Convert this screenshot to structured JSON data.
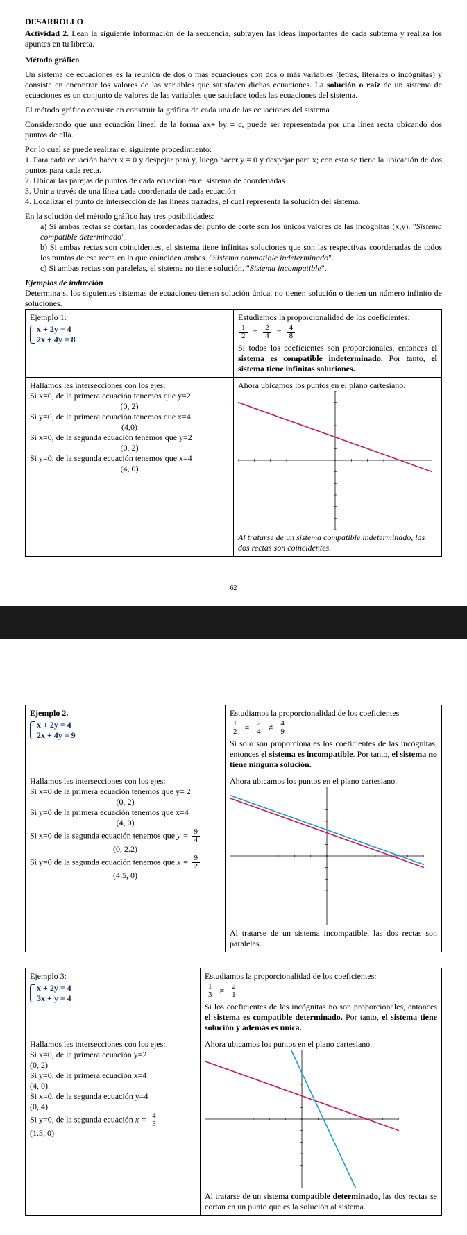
{
  "header": {
    "title": "DESARROLLO",
    "activity_label": "Actividad 2.",
    "activity_text": "Lean la siguiente información de la secuencia, subrayen las ideas importantes de cada subtema y realiza los apuntes en tu libreta.",
    "section": "Método gráfico"
  },
  "intro": {
    "p1a": "Un sistema de ecuaciones es la reunión de dos o más ecuaciones con dos o más variables (letras, literales o incógnitas) y consiste en encontrar los valores de las variables que satisfacen dichas ecuaciones. La ",
    "p1b": "solución o raíz",
    "p1c": " de un sistema de ecuaciones es un conjunto de valores de las variables que satisface todas las ecuaciones del sistema.",
    "p2": "El método gráfico consiste en construir la gráfica de cada una de las ecuaciones del sistema",
    "p3": "Considerando que una ecuación lineal de la forma ax+ by = c, puede ser representada por una línea recta ubicando dos puntos de ella.",
    "p4": "Por lo cual se puede realizar el siguiente procedimiento:",
    "step1": "1. Para cada ecuación hacer x = 0 y despejar para y, luego hacer y = 0 y despejar para x; con esto se tiene la ubicación de dos puntos para cada recta.",
    "step2": "2. Ubicar las parejas de puntos de cada ecuación en el sistema de coordenadas",
    "step3": "3. Unir a través de una línea cada coordenada de cada ecuación",
    "step4": "4. Localizar el punto de intersección de las líneas trazadas, el cual representa la solución del sistema.",
    "pos_intro": "En la solución del método gráfico hay tres posibilidades:",
    "pos_a_1": "a) Si ambas rectas se cortan, las coordenadas del punto de corte son los únicos valores de las incógnitas (x,y). \"",
    "pos_a_2": "Sistema compatible determinado",
    "pos_a_3": "\".",
    "pos_b_1": "b) Si ambas rectas son coincidentes, el sistema tiene infinitas soluciones que son las respectivas coordenadas de todos los puntos de esa recta en la que coinciden ambas. \"",
    "pos_b_2": "Sistema compatible indeterminado",
    "pos_b_3": "\".",
    "pos_c_1": "c) Si ambas rectas son paralelas, el sistema no tiene solución. \"",
    "pos_c_2": "Sistema incompatible",
    "pos_c_3": "\"."
  },
  "induction": {
    "title": "Ejemplos de inducción",
    "text": "Determina si los siguientes sistemas de ecuaciones tienen solución única, no tienen solución o tienen un número infinito de soluciones."
  },
  "ex1": {
    "title": "Ejemplo 1:",
    "eq1": "x + 2y = 4",
    "eq2": "2x + 4y = 8",
    "study": "Estudiamos la proporcionalidad de los coeficientes:",
    "frac": {
      "a": [
        "1",
        "2"
      ],
      "b": [
        "2",
        "4"
      ],
      "c": [
        "4",
        "8"
      ],
      "op1": "=",
      "op2": "="
    },
    "concl_a": "Si todos los coeficientes son proporcionales, entonces ",
    "concl_b": "el sistema es compatible indeterminado.",
    "concl_c": " Por tanto, ",
    "concl_d": "el sistema tiene infinitas soluciones.",
    "inter_title": "Hallamos las intersecciones con los ejes:",
    "i1": "Si x=0, de la primera ecuación tenemos que y=2",
    "i1p": "(0, 2)",
    "i2": "Si y=0, de la primera ecuación tenemos que x=4",
    "i2p": "(4,0)",
    "i3": "Si x=0, de la segunda ecuación tenemos que y=2",
    "i3p": "(0, 2)",
    "i4": "Si y=0, de la segunda ecuación tenemos que x=4",
    "i4p": "(4, 0)",
    "plot_title": "Ahora ubicamos los puntos en el plano cartesiano.",
    "caption": "Al tratarse de un sistema compatible indeterminado, las dos rectas son coincidentes.",
    "chart": {
      "type": "line",
      "xlim": [
        -6,
        6
      ],
      "ylim": [
        -6,
        6
      ],
      "axis_color": "#000000",
      "bg": "#ffffff",
      "lines": [
        {
          "color": "#d4145a",
          "width": 1.6,
          "pts": [
            [
              -6,
              5
            ],
            [
              6,
              -1
            ]
          ]
        }
      ]
    }
  },
  "ex2": {
    "title": "Ejemplo 2.",
    "eq1": "x + 2y = 4",
    "eq2": "2x + 4y = 9",
    "study": "Estudiamos la proporcionalidad de los coeficientes",
    "frac": {
      "a": [
        "1",
        "2"
      ],
      "b": [
        "2",
        "4"
      ],
      "c": [
        "4",
        "9"
      ],
      "op1": "=",
      "op2": "≠"
    },
    "concl_a": "Si solo son proporcionales los coeficientes de las incógnitas, entonces ",
    "concl_b": "el sistema es incompatible",
    "concl_c": ". Por tanto, ",
    "concl_d": "el sistema no tiene ninguna solución.",
    "inter_title": "Hallamos las intersecciones con los ejes:",
    "i1": "Si x=0 de la primera ecuación tenemos que y= 2",
    "i1p": "(0, 2)",
    "i2": "Si y=0 de la primera ecuación tenemos que x=4",
    "i2p": "(4, 0)",
    "i3a": "Si x=0 de la segunda ecuación tenemos que ",
    "i3b": "y = ",
    "i3f": [
      "9",
      "4"
    ],
    "i3p": "(0, 2.2)",
    "i4a": "Si y=0 de la segunda ecuación tenemos que ",
    "i4b": "x = ",
    "i4f": [
      "9",
      "2"
    ],
    "i4p": "(4.5, 0)",
    "plot_title": "Ahora ubicamos los puntos en el plano cartesiano.",
    "caption": "Al tratarse de un sistema incompatible, las dos rectas son paralelas.",
    "chart": {
      "type": "line",
      "xlim": [
        -6,
        6
      ],
      "ylim": [
        -6,
        6
      ],
      "axis_color": "#000000",
      "bg": "#ffffff",
      "lines": [
        {
          "color": "#1e9bd6",
          "width": 1.6,
          "pts": [
            [
              -6,
              5.25
            ],
            [
              6,
              -0.75
            ]
          ]
        },
        {
          "color": "#d4145a",
          "width": 1.6,
          "pts": [
            [
              -6,
              5
            ],
            [
              6,
              -1
            ]
          ]
        }
      ]
    }
  },
  "ex3": {
    "title": "Ejemplo 3:",
    "eq1": "x  +  2y  =  4",
    "eq2": "3x  +  y  =  4",
    "study": "Estudiamos la proporcionalidad de los coeficientes:",
    "frac": {
      "a": [
        "1",
        "3"
      ],
      "b": [
        "2",
        "1"
      ],
      "op1": "≠"
    },
    "concl_a": "Si los coeficientes de las incógnitas no son proporcionales, entonces ",
    "concl_b": "el sistema es compatible determinado.",
    "concl_c": " Por tanto, ",
    "concl_d": "el sistema tiene solución y además es única.",
    "inter_title": "Hallamos las intersecciones con los ejes:",
    "i1": "Si x=0, de la primera ecuación y=2",
    "i1p": "(0, 2)",
    "i2": "Si y=0, de la primera ecuación x=4",
    "i2p": "(4, 0)",
    "i3": "Si x=0, de la segunda ecuación y=4",
    "i3p": "(0, 4)",
    "i4a": "Si y=0, de la segunda ecuación ",
    "i4b": "x = ",
    "i4f": [
      "4",
      "3"
    ],
    "i4p": "(1.3, 0)",
    "plot_title": "Ahora ubicamos los puntos en el plano cartesiano.",
    "caption_a": "Al tratarse de un sistema ",
    "caption_b": "compatible determinado",
    "caption_c": ", las dos rectas se cortan en un punto que es la solución al sistema.",
    "chart": {
      "type": "line",
      "xlim": [
        -6,
        6
      ],
      "ylim": [
        -6,
        6
      ],
      "axis_color": "#000000",
      "bg": "#ffffff",
      "lines": [
        {
          "color": "#d4145a",
          "width": 1.6,
          "pts": [
            [
              -6,
              5
            ],
            [
              6,
              -1
            ]
          ]
        },
        {
          "color": "#1e9bd6",
          "width": 1.6,
          "pts": [
            [
              -1,
              7
            ],
            [
              3.5,
              -6.5
            ]
          ]
        }
      ]
    }
  },
  "pagenum": "62"
}
